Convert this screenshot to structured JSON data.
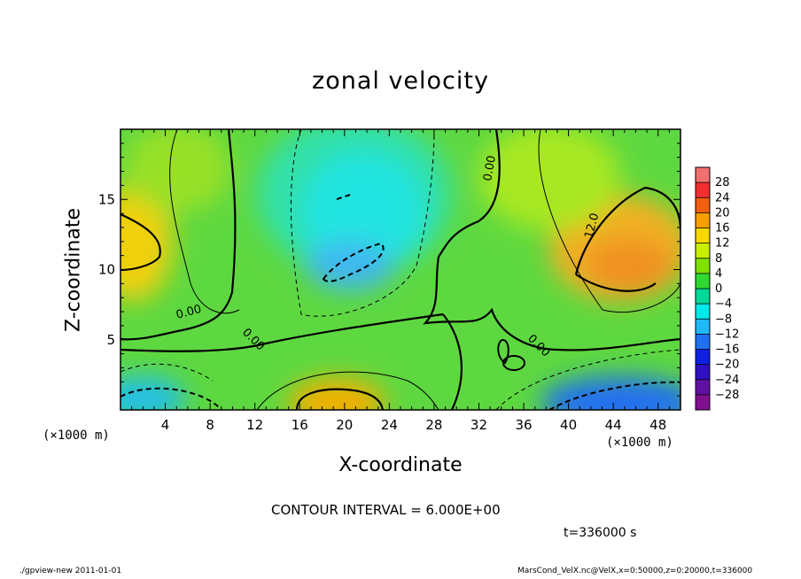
{
  "chart_data": {
    "type": "heatmap",
    "title": "zonal velocity",
    "xlabel": "X-coordinate",
    "ylabel": "Z-coordinate",
    "x_unit_label": "(×1000 m)",
    "y_unit_label": "(×1000 m)",
    "xlim": [
      0,
      50
    ],
    "ylim": [
      0,
      20
    ],
    "x_ticks": [
      4,
      8,
      12,
      16,
      20,
      24,
      28,
      32,
      36,
      40,
      44,
      48
    ],
    "y_ticks": [
      5,
      10,
      15
    ],
    "colorbar": {
      "levels": [
        28,
        24,
        20,
        16,
        12,
        8,
        4,
        0,
        -4,
        -8,
        -12,
        -16,
        -20,
        -24,
        -28
      ],
      "colors": [
        "#f07070",
        "#f03030",
        "#f06010",
        "#f8a000",
        "#f8d800",
        "#c8ee00",
        "#80e000",
        "#30d830",
        "#00d898",
        "#00e8e8",
        "#20b8f8",
        "#2070f0",
        "#1020e0",
        "#3010c0",
        "#6010a0",
        "#801090"
      ]
    },
    "contour_interval": "6.000E+00",
    "contour_labels": [
      "0.00",
      "0.00",
      "0.00",
      "0.00",
      "12.0"
    ],
    "regions": [
      {
        "name": "positive-left",
        "x": 2,
        "z": 12.5,
        "value": 12
      },
      {
        "name": "negative-center",
        "x": 20,
        "z": 13,
        "value": -8
      },
      {
        "name": "negative-core",
        "x": 21,
        "z": 10.5,
        "value": -12
      },
      {
        "name": "positive-right",
        "x": 44,
        "z": 11,
        "value": 14
      },
      {
        "name": "positive-bottom",
        "x": 19,
        "z": 1,
        "value": 14
      },
      {
        "name": "negative-bottom-right",
        "x": 46,
        "z": 1,
        "value": -16
      },
      {
        "name": "negative-bottom-left",
        "x": 1,
        "z": 1,
        "value": -12
      }
    ]
  },
  "contour_info": "CONTOUR INTERVAL = 6.000E+00",
  "time_label": "t=336000 s",
  "footer_left": "./gpview-new   2011-01-01",
  "footer_right": "MarsCond_VelX.nc@VelX,x=0:50000,z=0:20000,t=336000"
}
